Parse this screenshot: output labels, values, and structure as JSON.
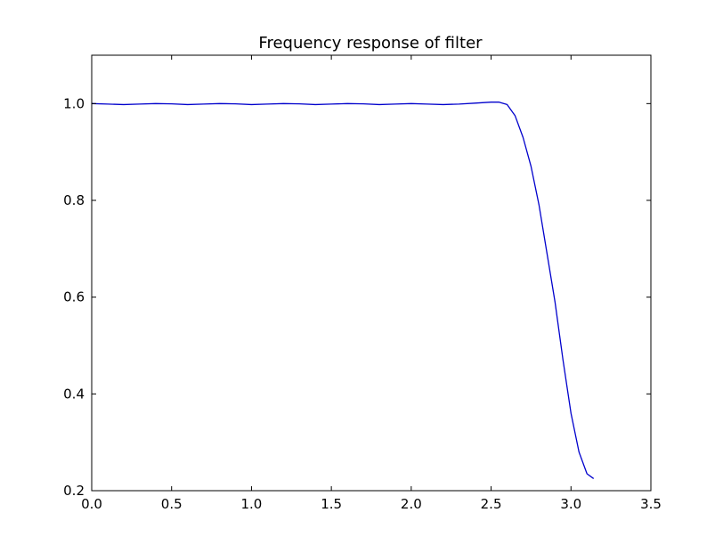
{
  "chart_data": {
    "type": "line",
    "title": "Frequency response of filter",
    "xlabel": "",
    "ylabel": "",
    "xlim": [
      0.0,
      3.5
    ],
    "ylim": [
      0.2,
      1.1
    ],
    "xticks": [
      "0.0",
      "0.5",
      "1.0",
      "1.5",
      "2.0",
      "2.5",
      "3.0",
      "3.5"
    ],
    "xtick_values": [
      0.0,
      0.5,
      1.0,
      1.5,
      2.0,
      2.5,
      3.0,
      3.5
    ],
    "yticks": [
      "0.2",
      "0.4",
      "0.6",
      "0.8",
      "1.0"
    ],
    "ytick_values": [
      0.2,
      0.4,
      0.6,
      0.8,
      1.0
    ],
    "grid": false,
    "legend": "none",
    "line_color": "#0000cc",
    "series": [
      {
        "x": [
          0.0,
          0.1,
          0.2,
          0.3,
          0.4,
          0.5,
          0.6,
          0.7,
          0.8,
          0.9,
          1.0,
          1.1,
          1.2,
          1.3,
          1.4,
          1.5,
          1.6,
          1.7,
          1.8,
          1.9,
          2.0,
          2.1,
          2.2,
          2.3,
          2.4,
          2.5,
          2.55,
          2.6,
          2.65,
          2.7,
          2.75,
          2.8,
          2.85,
          2.9,
          2.95,
          3.0,
          3.05,
          3.1,
          3.1416
        ],
        "values": [
          1.0,
          0.999,
          0.998,
          0.999,
          1.0,
          0.9995,
          0.998,
          0.999,
          1.0,
          0.9995,
          0.998,
          0.999,
          1.0,
          0.9995,
          0.998,
          0.999,
          1.0,
          0.9995,
          0.998,
          0.999,
          1.0,
          0.999,
          0.998,
          0.999,
          1.001,
          1.003,
          1.003,
          0.998,
          0.975,
          0.93,
          0.87,
          0.79,
          0.69,
          0.59,
          0.47,
          0.36,
          0.28,
          0.235,
          0.225
        ]
      }
    ]
  }
}
